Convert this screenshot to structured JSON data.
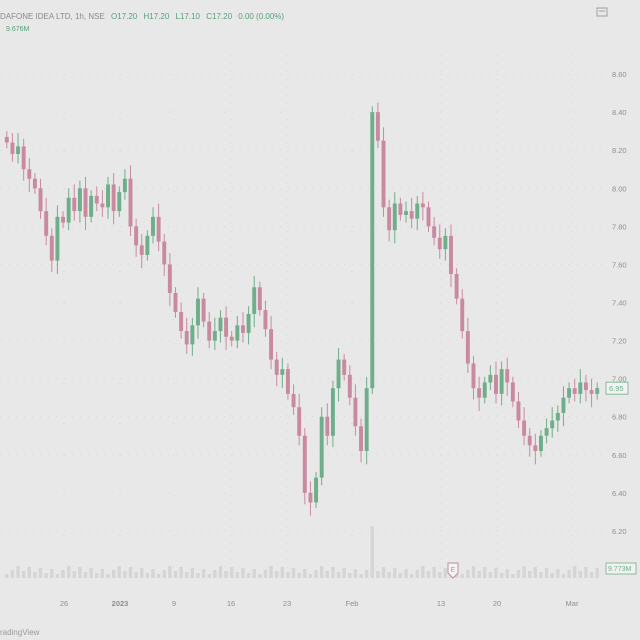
{
  "header": {
    "symbol": "DAFONE IDEA LTD, 1h, NSE",
    "o": "O17.20",
    "h": "H17.20",
    "l": "L17.10",
    "c": "C17.20",
    "chg": "0.00 (0.00%)"
  },
  "volume_label": "9.676M",
  "brand": "radingView",
  "colors": {
    "background": "#e8e8e8",
    "up": "#6fae8a",
    "down": "#c98aa0",
    "grid": "#cfcfcf",
    "axis_text": "#8f8f8f",
    "price_tag": "#6fae8a",
    "volume": "#d5d5d5"
  },
  "chart_data": {
    "type": "candlestick",
    "ylim": [
      6.1,
      8.7
    ],
    "y_ticks": [
      "8.60",
      "8.40",
      "8.20",
      "8.00",
      "7.80",
      "7.60",
      "7.40",
      "7.20",
      "7.00",
      "6.80",
      "6.60",
      "6.40",
      "6.20"
    ],
    "x_ticks": [
      "26",
      "2023",
      "9",
      "16",
      "23",
      "Feb",
      "13",
      "20",
      "Mar"
    ],
    "last_price": "6.95",
    "volume_tag": "9.773M",
    "flag_label": "E",
    "close": [
      8.24,
      8.18,
      8.22,
      8.1,
      8.05,
      8.0,
      7.88,
      7.75,
      7.62,
      7.85,
      7.82,
      7.95,
      7.88,
      8.0,
      7.85,
      7.96,
      7.92,
      7.9,
      8.02,
      7.88,
      7.98,
      8.05,
      7.8,
      7.7,
      7.65,
      7.75,
      7.85,
      7.72,
      7.6,
      7.45,
      7.35,
      7.25,
      7.18,
      7.28,
      7.42,
      7.3,
      7.2,
      7.25,
      7.32,
      7.22,
      7.2,
      7.28,
      7.24,
      7.34,
      7.48,
      7.36,
      7.26,
      7.1,
      7.02,
      7.05,
      6.92,
      6.85,
      6.7,
      6.4,
      6.35,
      6.48,
      6.8,
      6.7,
      6.95,
      7.1,
      7.02,
      6.9,
      6.75,
      6.62,
      6.95,
      8.4,
      8.25,
      7.9,
      7.78,
      7.92,
      7.86,
      7.88,
      7.84,
      7.92,
      7.9,
      7.8,
      7.74,
      7.68,
      7.75,
      7.55,
      7.42,
      7.25,
      7.08,
      6.95,
      6.9,
      6.98,
      7.02,
      6.92,
      7.05,
      6.98,
      6.88,
      6.78,
      6.7,
      6.65,
      6.62,
      6.7,
      6.74,
      6.78,
      6.82,
      6.9,
      6.95,
      6.92,
      6.98,
      6.94,
      6.92,
      6.95
    ]
  }
}
